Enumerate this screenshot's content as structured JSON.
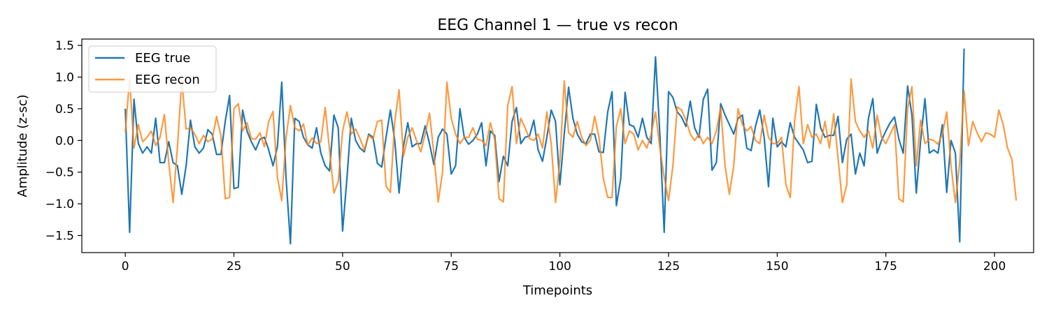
{
  "chart_data": {
    "type": "line",
    "title": "EEG Channel 1 — true vs recon",
    "xlabel": "Timepoints",
    "ylabel": "Amplitude (z-sc)",
    "xlim": [
      -10,
      209
    ],
    "ylim": [
      -1.77,
      1.6
    ],
    "x_ticks": [
      0,
      25,
      50,
      75,
      100,
      125,
      150,
      175,
      200
    ],
    "y_ticks": [
      -1.5,
      -1.0,
      -0.5,
      0.0,
      0.5,
      1.0,
      1.5
    ],
    "x_tick_labels": [
      "0",
      "25",
      "50",
      "75",
      "100",
      "125",
      "150",
      "175",
      "200"
    ],
    "y_tick_labels": [
      "−1.5",
      "−1.0",
      "−0.5",
      "0.0",
      "0.5",
      "1.0",
      "1.5"
    ],
    "grid": false,
    "legend_position": "top-left",
    "series": [
      {
        "name": "EEG true",
        "color": "#1f77b4",
        "alpha": 1.0,
        "values": [
          0.5,
          -1.45,
          0.65,
          -0.05,
          -0.2,
          -0.1,
          -0.2,
          0.35,
          -0.35,
          -0.35,
          -0.02,
          -0.35,
          -0.4,
          -0.85,
          -0.4,
          0.32,
          -0.1,
          -0.2,
          -0.12,
          0.17,
          0.1,
          -0.22,
          -0.22,
          0.3,
          0.71,
          -0.76,
          -0.74,
          0.48,
          0.15,
          -0.02,
          -0.15,
          0.02,
          0.05,
          -0.15,
          -0.4,
          -0.1,
          0.92,
          -0.6,
          -1.63,
          0.35,
          0.3,
          0.05,
          -0.07,
          -0.12,
          0.2,
          -0.2,
          -0.4,
          -0.48,
          0.4,
          0.2,
          -1.43,
          -0.6,
          0.35,
          0.0,
          -0.12,
          -0.18,
          0.1,
          0.05,
          -0.36,
          -0.42,
          0.05,
          0.48,
          0.0,
          -0.83,
          -0.1,
          0.28,
          -0.1,
          -0.05,
          -0.05,
          0.23,
          -0.05,
          -0.38,
          0.05,
          0.18,
          0.1,
          -0.53,
          -0.4,
          0.5,
          0.05,
          -0.06,
          0.0,
          0.1,
          0.28,
          -0.4,
          0.15,
          0.08,
          -0.65,
          -0.25,
          -0.4,
          0.3,
          0.52,
          -0.05,
          0.05,
          0.07,
          0.32,
          -0.15,
          -0.33,
          0.05,
          0.48,
          0.3,
          -0.7,
          0.1,
          0.84,
          0.35,
          0.1,
          -0.02,
          -0.05,
          0.1,
          0.1,
          -0.18,
          -0.19,
          0.45,
          0.77,
          -1.03,
          -0.6,
          0.76,
          0.25,
          0.22,
          0.05,
          0.35,
          0.05,
          -0.05,
          1.32,
          0.1,
          -1.45,
          0.77,
          0.68,
          0.45,
          0.37,
          0.22,
          0.62,
          0.2,
          0.05,
          0.65,
          0.81,
          -0.47,
          -0.35,
          0.58,
          0.4,
          0.25,
          0.1,
          0.35,
          0.4,
          -0.12,
          -0.16,
          0.22,
          0.48,
          0.05,
          -0.73,
          0.35,
          -0.1,
          -0.02,
          -0.1,
          0.28,
          0.05,
          -0.05,
          -0.15,
          -0.35,
          -0.33,
          0.57,
          0.2,
          0.05,
          0.08,
          0.08,
          0.38,
          -0.35,
          0.02,
          0.1,
          -0.53,
          -0.2,
          -0.4,
          0.35,
          0.66,
          -0.2,
          0.0,
          0.15,
          0.28,
          0.37,
          0.02,
          -0.2,
          0.86,
          0.4,
          -0.83,
          0.0,
          0.66,
          -0.2,
          -0.15,
          -0.2,
          0.25,
          -0.82,
          0.0,
          -0.2,
          -1.6,
          1.45
        ]
      },
      {
        "name": "EEG recon",
        "color": "#ff7f0e",
        "alpha": 0.8,
        "values": [
          0.13,
          0.98,
          -0.12,
          0.25,
          -0.02,
          0.05,
          0.15,
          -0.08,
          0.05,
          0.41,
          -0.35,
          -0.98,
          -0.1,
          0.95,
          0.18,
          0.2,
          0.1,
          -0.05,
          0.08,
          -0.02,
          0.02,
          0.38,
          0.08,
          -0.92,
          -0.9,
          0.5,
          0.58,
          0.15,
          0.28,
          0.03,
          0.02,
          0.12,
          -0.1,
          0.3,
          0.46,
          -0.58,
          -0.95,
          0.05,
          0.55,
          0.2,
          0.15,
          0.26,
          -0.08,
          0.04,
          -0.05,
          -0.02,
          0.52,
          -0.15,
          -0.83,
          -0.65,
          0.15,
          0.45,
          0.1,
          0.18,
          0.03,
          -0.15,
          0.08,
          0.02,
          0.3,
          0.32,
          -0.72,
          -0.82,
          0.3,
          0.8,
          -0.25,
          0.05,
          0.2,
          0.0,
          -0.18,
          0.1,
          0.43,
          -0.2,
          -0.97,
          -0.5,
          0.92,
          0.35,
          0.1,
          -0.05,
          0.05,
          0.05,
          0.2,
          0.02,
          0.0,
          -0.08,
          0.28,
          0.02,
          -0.92,
          -0.97,
          0.55,
          0.85,
          -0.05,
          0.35,
          0.2,
          0.03,
          0.0,
          0.1,
          -0.12,
          0.45,
          -0.05,
          -0.98,
          -0.32,
          0.94,
          0.12,
          0.05,
          0.3,
          0.05,
          -0.08,
          0.0,
          0.38,
          0.05,
          -0.6,
          -0.9,
          -0.9,
          0.22,
          0.5,
          -0.05,
          0.15,
          0.1,
          -0.15,
          0.0,
          -0.12,
          0.1,
          0.45,
          -0.12,
          -0.58,
          -0.95,
          -0.4,
          0.53,
          0.48,
          0.32,
          0.1,
          0.0,
          0.1,
          -0.05,
          0.05,
          -0.05,
          0.15,
          0.52,
          -0.4,
          -0.85,
          -0.4,
          0.5,
          0.25,
          0.15,
          0.22,
          0.0,
          -0.05,
          0.4,
          0.05,
          -0.05,
          -0.05,
          0.05,
          -0.7,
          -0.9,
          0.3,
          0.85,
          -0.05,
          0.25,
          0.05,
          0.1,
          -0.05,
          0.3,
          -0.12,
          0.42,
          -0.28,
          -0.98,
          -0.7,
          0.97,
          0.3,
          0.15,
          0.05,
          0.15,
          -0.12,
          0.4,
          0.05,
          -0.05,
          0.1,
          0.25,
          -0.92,
          -0.97,
          0.5,
          0.85,
          -0.4,
          0.32,
          -0.05,
          0.02,
          0.0,
          -0.06,
          0.1,
          0.45,
          -0.4,
          -0.98,
          -0.35,
          0.78,
          -0.08,
          0.3,
          0.12,
          -0.02,
          0.12,
          0.1,
          0.05,
          0.48,
          0.25,
          -0.12,
          -0.3,
          -0.95
        ]
      }
    ]
  }
}
